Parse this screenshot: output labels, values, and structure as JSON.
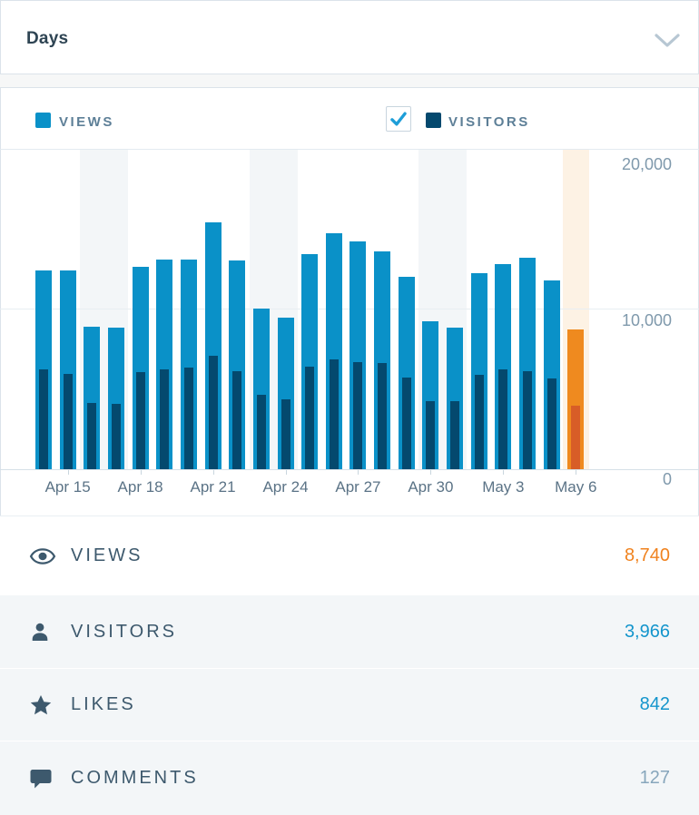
{
  "header": {
    "title": "Days"
  },
  "legend": {
    "views_label": "VIEWS",
    "visitors_label": "VISITORS",
    "visitors_checked": true
  },
  "colors": {
    "views": "#0a91c8",
    "visitors": "#04496e",
    "views_highlight": "#ef8a1f",
    "visitors_highlight": "#d85d27",
    "weekend_bg": "#f3f6f8",
    "highlight_bg": "#fdf2e4",
    "check": "#1e9ed8",
    "orange": "#f0821e",
    "blue": "#1495cc",
    "gray": "#87a6bc"
  },
  "chart_data": {
    "type": "bar",
    "x": [
      "Apr 14",
      "Apr 15",
      "Apr 16",
      "Apr 17",
      "Apr 18",
      "Apr 19",
      "Apr 20",
      "Apr 21",
      "Apr 22",
      "Apr 23",
      "Apr 24",
      "Apr 25",
      "Apr 26",
      "Apr 27",
      "Apr 28",
      "Apr 29",
      "Apr 30",
      "May 1",
      "May 2",
      "May 3",
      "May 4",
      "May 5",
      "May 6"
    ],
    "series": [
      {
        "name": "Views",
        "values": [
          12400,
          12400,
          8870,
          8840,
          12650,
          13070,
          13070,
          15390,
          13030,
          10010,
          9440,
          13450,
          14730,
          14200,
          13600,
          12000,
          9250,
          8820,
          12220,
          12800,
          13180,
          11810,
          8740
        ]
      },
      {
        "name": "Visitors",
        "values": [
          6230,
          5950,
          4120,
          4100,
          6040,
          6230,
          6330,
          7080,
          6140,
          4630,
          4380,
          6420,
          6840,
          6710,
          6650,
          5700,
          4250,
          4250,
          5920,
          6230,
          6140,
          5670,
          3966
        ]
      }
    ],
    "ylim": [
      0,
      20000
    ],
    "y_ticks": [
      "20,000",
      "10,000",
      "0"
    ],
    "x_tick_labels": [
      "Apr 15",
      "Apr 18",
      "Apr 21",
      "Apr 24",
      "Apr 27",
      "Apr 30",
      "May 3",
      "May 6"
    ],
    "x_tick_indices": [
      1,
      4,
      7,
      10,
      13,
      16,
      19,
      22
    ],
    "weekend_indices": [
      2,
      3,
      9,
      10,
      16,
      17
    ],
    "highlight_index": 22,
    "grid": "horizontal",
    "legend_position": "top"
  },
  "summary": {
    "rows": [
      {
        "id": "views",
        "icon": "eye-icon",
        "label": "VIEWS",
        "value": "8,740",
        "value_color": "orange",
        "selected": true
      },
      {
        "id": "visitors",
        "icon": "person-icon",
        "label": "VISITORS",
        "value": "3,966",
        "value_color": "blue",
        "selected": false
      },
      {
        "id": "likes",
        "icon": "star-icon",
        "label": "LIKES",
        "value": "842",
        "value_color": "blue",
        "selected": false
      },
      {
        "id": "comments",
        "icon": "comment-icon",
        "label": "COMMENTS",
        "value": "127",
        "value_color": "gray",
        "selected": false
      }
    ]
  }
}
